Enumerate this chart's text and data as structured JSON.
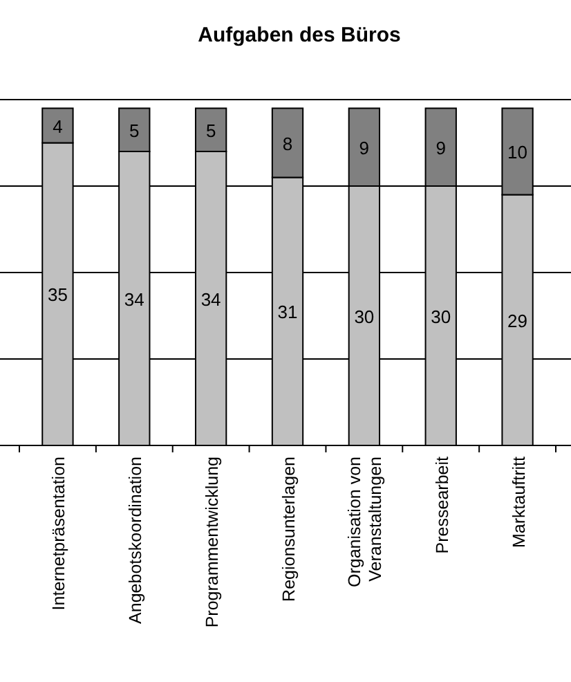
{
  "chart_data": {
    "type": "bar",
    "title": "Aufgaben des Büros",
    "stacked": true,
    "categories": [
      "Internetpräsentation",
      "Angebotskoordination",
      "Programmentwicklung",
      "Regionsunterlagen",
      "Organisation von Veranstaltungen",
      "Pressearbeit",
      "Marktauftritt"
    ],
    "series": [
      {
        "color": "#c0c0c0",
        "values": [
          35,
          34,
          34,
          31,
          30,
          30,
          29
        ]
      },
      {
        "color": "#808080",
        "values": [
          4,
          5,
          5,
          8,
          9,
          9,
          10
        ]
      }
    ],
    "ylim": [
      0,
      40
    ],
    "yticks": [
      {
        "value": 0,
        "label": null
      },
      {
        "value": 10,
        "label": null
      },
      {
        "value": 20,
        "label": null
      },
      {
        "value": 30,
        "label": null
      },
      {
        "value": 40,
        "label": null
      }
    ],
    "tick_labels": "x",
    "grid": "y",
    "data_labels": true
  }
}
